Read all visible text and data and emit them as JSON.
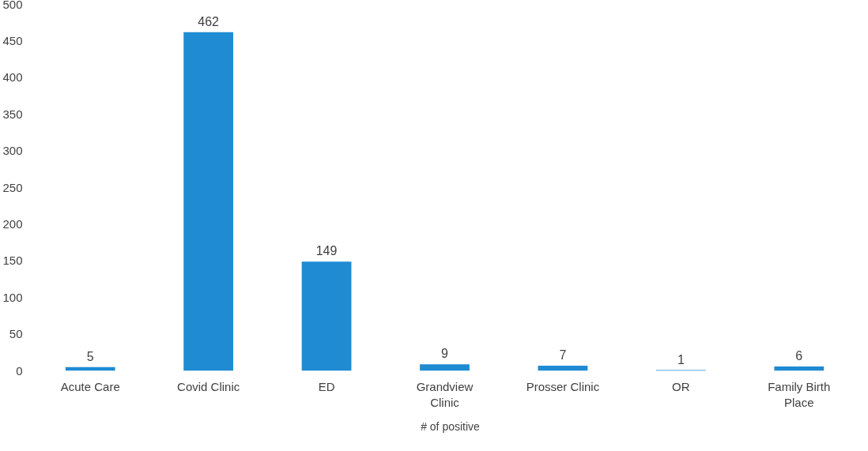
{
  "chart_data": {
    "type": "bar",
    "categories": [
      "Acute Care",
      "Covid Clinic",
      "ED",
      "Grandview\nClinic",
      "Prosser Clinic",
      "OR",
      "Family Birth\nPlace"
    ],
    "series": [
      {
        "name": "# of positive",
        "color": "#1e8bd3",
        "values": [
          5,
          462,
          149,
          9,
          7,
          1,
          6
        ]
      }
    ],
    "ylim": [
      0,
      500
    ],
    "yticks": [
      0,
      50,
      100,
      150,
      200,
      250,
      300,
      350,
      400,
      450,
      500
    ],
    "data_labels": true,
    "grid": false,
    "legend": "bottom"
  }
}
